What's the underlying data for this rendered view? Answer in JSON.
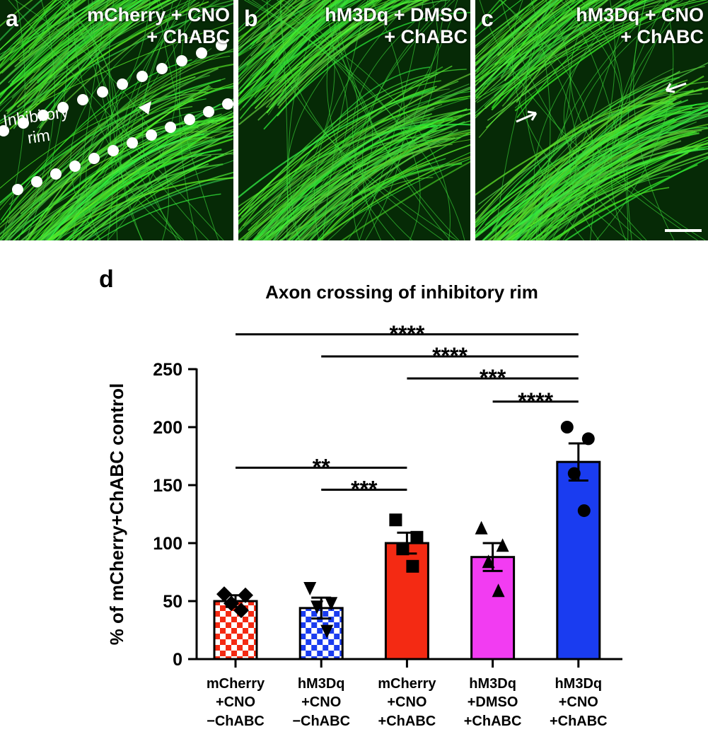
{
  "panels": [
    {
      "label": "a",
      "caption": "mCherry + CNO\n+ ChABC",
      "annotation": "Inhibitory\nrim"
    },
    {
      "label": "b",
      "caption": "hM3Dq + DMSO\n+ ChABC"
    },
    {
      "label": "c",
      "caption": "hM3Dq + CNO\n+ ChABC"
    }
  ],
  "chart_data": {
    "type": "bar",
    "panel_label": "d",
    "title": "Axon crossing of inhibitory rim",
    "y_label": "% of mCherry+ChABC control",
    "categories": [
      "mCherry\n+CNO\n−ChABC",
      "hM3Dq\n+CNO\n−ChABC",
      "mCherry\n+CNO\n+ChABC",
      "hM3Dq\n+DMSO\n+ChABC",
      "hM3Dq\n+CNO\n+ChABC"
    ],
    "values": [
      50,
      44,
      100,
      88,
      170
    ],
    "errors": [
      5,
      9,
      9,
      12,
      16
    ],
    "points": [
      [
        56,
        55,
        48,
        42
      ],
      [
        61,
        48,
        45,
        24
      ],
      [
        120,
        105,
        95,
        80
      ],
      [
        113,
        98,
        84,
        59
      ],
      [
        200,
        190,
        160,
        128
      ]
    ],
    "colors": [
      "#f42a13",
      "#1a3cf0",
      "#f42a13",
      "#f23cf2",
      "#1a3cf0"
    ],
    "patterns": [
      "checker",
      "checker",
      "solid",
      "solid",
      "solid"
    ],
    "markers": [
      "diamond",
      "triangle-down",
      "square",
      "triangle-up",
      "circle"
    ],
    "ylim": [
      0,
      250
    ],
    "yticks": [
      0,
      50,
      100,
      150,
      200,
      250
    ],
    "significance": [
      {
        "groups": [
          0,
          4
        ],
        "y": 280,
        "label": "****"
      },
      {
        "groups": [
          1,
          4
        ],
        "y": 261,
        "label": "****"
      },
      {
        "groups": [
          2,
          4
        ],
        "y": 242,
        "label": "***"
      },
      {
        "groups": [
          3,
          4
        ],
        "y": 222,
        "label": "****"
      },
      {
        "groups": [
          0,
          2
        ],
        "y": 165,
        "label": "**"
      },
      {
        "groups": [
          1,
          2
        ],
        "y": 146,
        "label": "***"
      }
    ]
  }
}
